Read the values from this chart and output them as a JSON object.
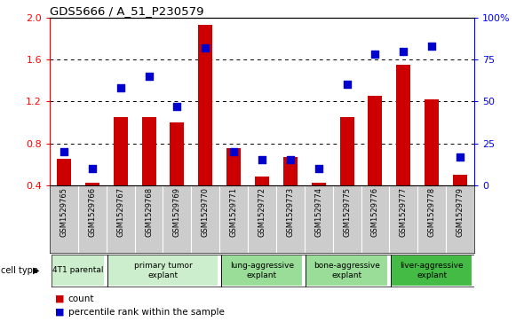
{
  "title": "GDS5666 / A_51_P230579",
  "samples": [
    "GSM1529765",
    "GSM1529766",
    "GSM1529767",
    "GSM1529768",
    "GSM1529769",
    "GSM1529770",
    "GSM1529771",
    "GSM1529772",
    "GSM1529773",
    "GSM1529774",
    "GSM1529775",
    "GSM1529776",
    "GSM1529777",
    "GSM1529778",
    "GSM1529779"
  ],
  "counts": [
    0.65,
    0.42,
    1.05,
    1.05,
    1.0,
    1.93,
    0.75,
    0.48,
    0.67,
    0.42,
    1.05,
    1.25,
    1.55,
    1.22,
    0.5
  ],
  "percentiles": [
    20,
    10,
    58,
    65,
    47,
    82,
    20,
    15,
    15,
    10,
    60,
    78,
    80,
    83,
    17
  ],
  "ylim_left": [
    0.4,
    2.0
  ],
  "ylim_right": [
    0,
    100
  ],
  "yticks_left": [
    0.4,
    0.8,
    1.2,
    1.6,
    2.0
  ],
  "yticks_right": [
    0,
    25,
    50,
    75,
    100
  ],
  "ytick_labels_right": [
    "0",
    "25",
    "50",
    "75",
    "100%"
  ],
  "cell_types": [
    {
      "label": "4T1 parental",
      "start": 0,
      "end": 1,
      "color": "#cceecc"
    },
    {
      "label": "primary tumor\nexplant",
      "start": 2,
      "end": 5,
      "color": "#cceecc"
    },
    {
      "label": "lung-aggressive\nexplant",
      "start": 6,
      "end": 8,
      "color": "#99dd99"
    },
    {
      "label": "bone-aggressive\nexplant",
      "start": 9,
      "end": 11,
      "color": "#99dd99"
    },
    {
      "label": "liver-aggressive\nexplant",
      "start": 12,
      "end": 14,
      "color": "#44bb44"
    }
  ],
  "bar_color": "#cc0000",
  "dot_color": "#0000cc",
  "bar_width": 0.5,
  "dot_size": 30,
  "sample_bg": "#cccccc",
  "legend_items": [
    {
      "label": "count",
      "color": "#cc0000"
    },
    {
      "label": "percentile rank within the sample",
      "color": "#0000cc"
    }
  ]
}
